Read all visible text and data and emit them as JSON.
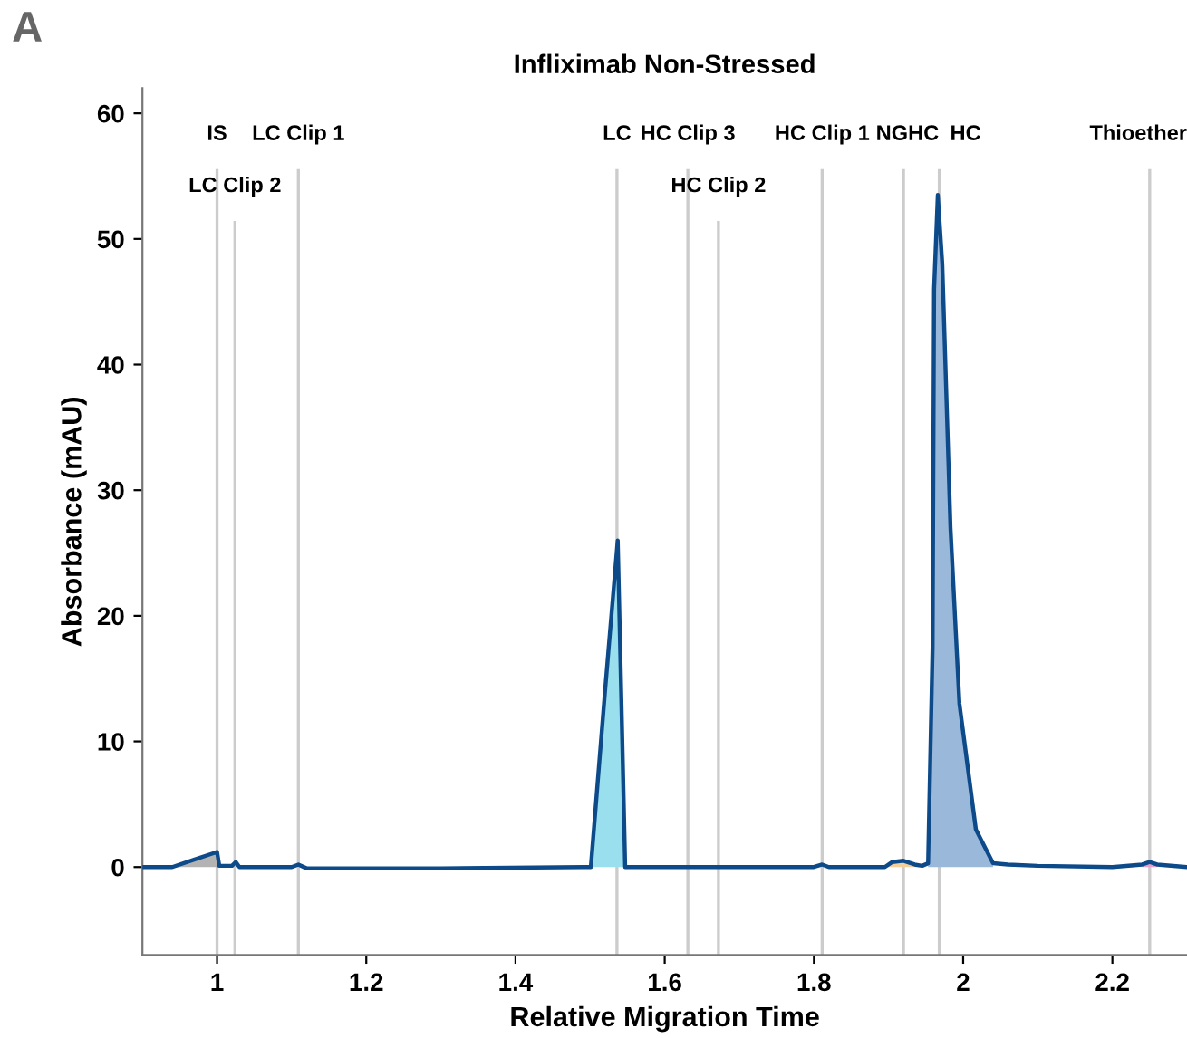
{
  "chart_data": {
    "type": "line",
    "title": "Infliximab Non-Stressed",
    "xlabel": "Relative Migration Time",
    "ylabel": "Absorbance (mAU)",
    "annotations": [
      "A"
    ],
    "xlim": [
      0.9,
      2.3
    ],
    "ylim": [
      -7,
      62
    ],
    "xticks": [
      1,
      1.2,
      1.4,
      1.6,
      1.8,
      2,
      2.2
    ],
    "yticks": [
      0,
      10,
      20,
      30,
      40,
      50,
      60
    ],
    "grid": false,
    "legend": false,
    "marker": "none",
    "line_style": "solid",
    "series": [
      {
        "type": "area",
        "color": "#b3b3b3",
        "x": [
          0.94,
          0.97,
          0.995,
          1.0
        ],
        "values": [
          0,
          0.6,
          1.1,
          1.2
        ]
      },
      {
        "type": "area",
        "color": "#9adfee",
        "x": [
          1.501,
          1.52,
          1.537,
          1.547
        ],
        "values": [
          0,
          14,
          26,
          0
        ]
      },
      {
        "type": "area",
        "color": "#f5cf9a",
        "x": [
          1.895,
          1.905,
          1.92,
          1.935,
          1.945
        ],
        "values": [
          0,
          0.4,
          0.5,
          0.2,
          0.1
        ]
      },
      {
        "type": "area",
        "color": "#9ab8d9",
        "x": [
          1.953,
          1.959,
          1.961,
          1.966,
          1.972,
          1.983,
          1.995,
          2.017,
          2.04
        ],
        "values": [
          0.3,
          17.5,
          46,
          53.5,
          48,
          27,
          13,
          3,
          0.3
        ]
      },
      {
        "type": "area",
        "color": "#e8a0c8",
        "x": [
          2.24,
          2.25,
          2.26
        ],
        "values": [
          0.2,
          0.4,
          0.2
        ]
      },
      {
        "color": "#0d4a8a",
        "x": [
          0.9,
          0.94,
          0.97,
          0.995,
          1.0,
          1.003,
          1.02,
          1.025,
          1.03,
          1.1,
          1.109,
          1.12,
          1.3,
          1.49,
          1.501,
          1.52,
          1.537,
          1.547,
          1.56,
          1.8,
          1.811,
          1.82,
          1.895,
          1.905,
          1.92,
          1.935,
          1.945,
          1.953,
          1.959,
          1.961,
          1.966,
          1.972,
          1.983,
          1.995,
          2.017,
          2.04,
          2.06,
          2.1,
          2.2,
          2.24,
          2.25,
          2.26,
          2.3
        ],
        "values": [
          0,
          0,
          0.6,
          1.1,
          1.2,
          0.1,
          0.1,
          0.4,
          0,
          0,
          0.2,
          -0.1,
          -0.1,
          0,
          0,
          14,
          26,
          0,
          0,
          0,
          0.2,
          0,
          0,
          0.4,
          0.5,
          0.2,
          0.1,
          0.3,
          17.5,
          46,
          53.5,
          48,
          27,
          13,
          3,
          0.3,
          0.2,
          0.1,
          0,
          0.2,
          0.4,
          0.2,
          0
        ]
      }
    ],
    "ref_lines": [
      {
        "axis": "x",
        "value": 1.0,
        "label": "IS",
        "color": "#cccccc"
      },
      {
        "axis": "x",
        "value": 1.024,
        "label": "LC Clip 2",
        "color": "#cccccc"
      },
      {
        "axis": "x",
        "value": 1.109,
        "label": "LC Clip 1",
        "color": "#cccccc"
      },
      {
        "axis": "x",
        "value": 1.536,
        "label": "LC",
        "color": "#cccccc"
      },
      {
        "axis": "x",
        "value": 1.631,
        "label": "HC Clip 3",
        "color": "#cccccc"
      },
      {
        "axis": "x",
        "value": 1.672,
        "label": "HC Clip 2",
        "color": "#cccccc"
      },
      {
        "axis": "x",
        "value": 1.811,
        "label": "HC Clip 1",
        "color": "#cccccc"
      },
      {
        "axis": "x",
        "value": 1.92,
        "label": "NGHC",
        "color": "#cccccc"
      },
      {
        "axis": "x",
        "value": 1.968,
        "label": "HC",
        "color": "#cccccc"
      },
      {
        "axis": "x",
        "value": 2.25,
        "label": "Thioether",
        "color": "#cccccc"
      }
    ]
  }
}
